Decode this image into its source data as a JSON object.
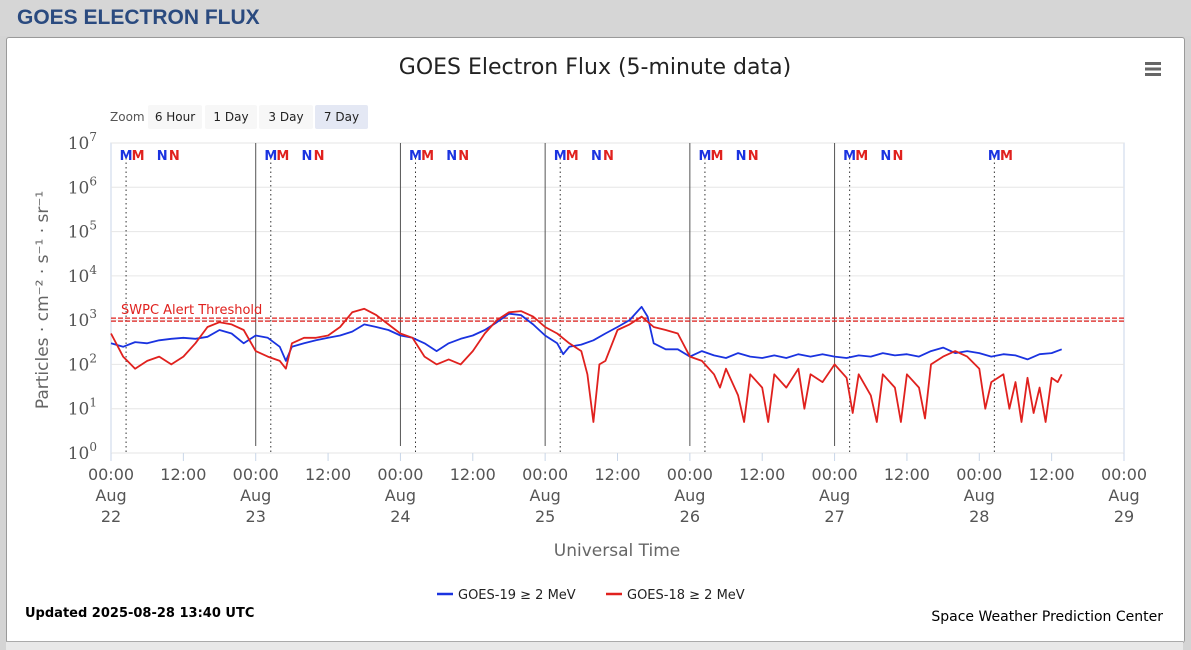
{
  "page": {
    "header_title": "GOES ELECTRON FLUX"
  },
  "menu_icon": "hamburger-menu-icon",
  "zoom": {
    "label": "Zoom",
    "buttons": [
      "6 Hour",
      "1 Day",
      "3 Day",
      "7 Day"
    ],
    "selected": "7 Day"
  },
  "footer": {
    "updated": "Updated 2025-08-28 13:40 UTC",
    "credit": "Space Weather Prediction Center"
  },
  "colors": {
    "goes19": "#1a33e0",
    "goes18": "#e0211e",
    "threshold": "#e0211e",
    "grid": "#e6e6e6",
    "plot_border": "#c9d6e8"
  },
  "chart_data": {
    "type": "line",
    "title": "GOES Electron Flux (5-minute data)",
    "xlabel": "Universal Time",
    "ylabel": "Particles · cm⁻² · s⁻¹ · sr⁻¹",
    "y_scale": "log",
    "ylim": [
      1,
      10000000
    ],
    "xlim": [
      "2025-08-22 00:00",
      "2025-08-29 00:00"
    ],
    "y_ticks": [
      {
        "value": 1,
        "base": "10",
        "exp": "0"
      },
      {
        "value": 10,
        "base": "10",
        "exp": "1"
      },
      {
        "value": 100,
        "base": "10",
        "exp": "2"
      },
      {
        "value": 1000,
        "base": "10",
        "exp": "3"
      },
      {
        "value": 10000,
        "base": "10",
        "exp": "4"
      },
      {
        "value": 100000,
        "base": "10",
        "exp": "5"
      },
      {
        "value": 1000000,
        "base": "10",
        "exp": "6"
      },
      {
        "value": 10000000,
        "base": "10",
        "exp": "7"
      }
    ],
    "x_ticks": [
      {
        "time": "2025-08-22 00:00",
        "label": [
          "00:00",
          "Aug",
          "22"
        ]
      },
      {
        "time": "2025-08-22 12:00",
        "label": [
          "12:00"
        ]
      },
      {
        "time": "2025-08-23 00:00",
        "label": [
          "00:00",
          "Aug",
          "23"
        ]
      },
      {
        "time": "2025-08-23 12:00",
        "label": [
          "12:00"
        ]
      },
      {
        "time": "2025-08-24 00:00",
        "label": [
          "00:00",
          "Aug",
          "24"
        ]
      },
      {
        "time": "2025-08-24 12:00",
        "label": [
          "12:00"
        ]
      },
      {
        "time": "2025-08-25 00:00",
        "label": [
          "00:00",
          "Aug",
          "25"
        ]
      },
      {
        "time": "2025-08-25 12:00",
        "label": [
          "12:00"
        ]
      },
      {
        "time": "2025-08-26 00:00",
        "label": [
          "00:00",
          "Aug",
          "26"
        ]
      },
      {
        "time": "2025-08-26 12:00",
        "label": [
          "12:00"
        ]
      },
      {
        "time": "2025-08-27 00:00",
        "label": [
          "00:00",
          "Aug",
          "27"
        ]
      },
      {
        "time": "2025-08-27 12:00",
        "label": [
          "12:00"
        ]
      },
      {
        "time": "2025-08-28 00:00",
        "label": [
          "00:00",
          "Aug",
          "28"
        ]
      },
      {
        "time": "2025-08-28 12:00",
        "label": [
          "12:00"
        ]
      },
      {
        "time": "2025-08-29 00:00",
        "label": [
          "00:00",
          "Aug",
          "29"
        ]
      }
    ],
    "threshold": {
      "label": "SWPC Alert Threshold",
      "value": 1000
    },
    "day_markers": [
      {
        "time": "2025-08-22 02:30",
        "label": "M",
        "color": "#1a33e0"
      },
      {
        "time": "2025-08-22 04:30",
        "label": "M",
        "color": "#e0211e"
      },
      {
        "time": "2025-08-22 08:30",
        "label": "N",
        "color": "#1a33e0"
      },
      {
        "time": "2025-08-22 10:30",
        "label": "N",
        "color": "#e0211e"
      },
      {
        "time": "2025-08-23 02:30",
        "label": "M",
        "color": "#1a33e0"
      },
      {
        "time": "2025-08-23 04:30",
        "label": "M",
        "color": "#e0211e"
      },
      {
        "time": "2025-08-23 08:30",
        "label": "N",
        "color": "#1a33e0"
      },
      {
        "time": "2025-08-23 10:30",
        "label": "N",
        "color": "#e0211e"
      },
      {
        "time": "2025-08-24 02:30",
        "label": "M",
        "color": "#1a33e0"
      },
      {
        "time": "2025-08-24 04:30",
        "label": "M",
        "color": "#e0211e"
      },
      {
        "time": "2025-08-24 08:30",
        "label": "N",
        "color": "#1a33e0"
      },
      {
        "time": "2025-08-24 10:30",
        "label": "N",
        "color": "#e0211e"
      },
      {
        "time": "2025-08-25 02:30",
        "label": "M",
        "color": "#1a33e0"
      },
      {
        "time": "2025-08-25 04:30",
        "label": "M",
        "color": "#e0211e"
      },
      {
        "time": "2025-08-25 08:30",
        "label": "N",
        "color": "#1a33e0"
      },
      {
        "time": "2025-08-25 10:30",
        "label": "N",
        "color": "#e0211e"
      },
      {
        "time": "2025-08-26 02:30",
        "label": "M",
        "color": "#1a33e0"
      },
      {
        "time": "2025-08-26 04:30",
        "label": "M",
        "color": "#e0211e"
      },
      {
        "time": "2025-08-26 08:30",
        "label": "N",
        "color": "#1a33e0"
      },
      {
        "time": "2025-08-26 10:30",
        "label": "N",
        "color": "#e0211e"
      },
      {
        "time": "2025-08-27 02:30",
        "label": "M",
        "color": "#1a33e0"
      },
      {
        "time": "2025-08-27 04:30",
        "label": "M",
        "color": "#e0211e"
      },
      {
        "time": "2025-08-27 08:30",
        "label": "N",
        "color": "#1a33e0"
      },
      {
        "time": "2025-08-27 10:30",
        "label": "N",
        "color": "#e0211e"
      },
      {
        "time": "2025-08-28 02:30",
        "label": "M",
        "color": "#1a33e0"
      },
      {
        "time": "2025-08-28 04:30",
        "label": "M",
        "color": "#e0211e"
      }
    ],
    "day_lines": [
      "2025-08-23 00:00",
      "2025-08-24 00:00",
      "2025-08-25 00:00",
      "2025-08-26 00:00",
      "2025-08-27 00:00"
    ],
    "noon_lines": [
      "2025-08-22 02:30",
      "2025-08-23 02:30",
      "2025-08-24 02:30",
      "2025-08-25 02:30",
      "2025-08-26 02:30",
      "2025-08-27 02:30",
      "2025-08-28 02:30"
    ],
    "series": [
      {
        "name": "GOES-19 ≥ 2 MeV",
        "color": "#1a33e0",
        "points": [
          [
            "2025-08-22 00:00",
            300
          ],
          [
            "2025-08-22 02:00",
            250
          ],
          [
            "2025-08-22 04:00",
            320
          ],
          [
            "2025-08-22 06:00",
            300
          ],
          [
            "2025-08-22 08:00",
            350
          ],
          [
            "2025-08-22 10:00",
            380
          ],
          [
            "2025-08-22 12:00",
            400
          ],
          [
            "2025-08-22 14:00",
            380
          ],
          [
            "2025-08-22 16:00",
            420
          ],
          [
            "2025-08-22 18:00",
            600
          ],
          [
            "2025-08-22 20:00",
            500
          ],
          [
            "2025-08-22 22:00",
            300
          ],
          [
            "2025-08-23 00:00",
            450
          ],
          [
            "2025-08-23 02:00",
            400
          ],
          [
            "2025-08-23 04:00",
            250
          ],
          [
            "2025-08-23 05:00",
            120
          ],
          [
            "2025-08-23 06:00",
            250
          ],
          [
            "2025-08-23 08:00",
            300
          ],
          [
            "2025-08-23 10:00",
            350
          ],
          [
            "2025-08-23 12:00",
            400
          ],
          [
            "2025-08-23 14:00",
            450
          ],
          [
            "2025-08-23 16:00",
            550
          ],
          [
            "2025-08-23 18:00",
            800
          ],
          [
            "2025-08-23 20:00",
            700
          ],
          [
            "2025-08-23 22:00",
            600
          ],
          [
            "2025-08-24 00:00",
            450
          ],
          [
            "2025-08-24 02:00",
            400
          ],
          [
            "2025-08-24 04:00",
            300
          ],
          [
            "2025-08-24 06:00",
            200
          ],
          [
            "2025-08-24 08:00",
            300
          ],
          [
            "2025-08-24 10:00",
            380
          ],
          [
            "2025-08-24 12:00",
            450
          ],
          [
            "2025-08-24 14:00",
            600
          ],
          [
            "2025-08-24 16:00",
            900
          ],
          [
            "2025-08-24 18:00",
            1400
          ],
          [
            "2025-08-24 20:00",
            1300
          ],
          [
            "2025-08-24 22:00",
            800
          ],
          [
            "2025-08-25 00:00",
            450
          ],
          [
            "2025-08-25 02:00",
            300
          ],
          [
            "2025-08-25 03:00",
            170
          ],
          [
            "2025-08-25 04:00",
            250
          ],
          [
            "2025-08-25 06:00",
            280
          ],
          [
            "2025-08-25 08:00",
            350
          ],
          [
            "2025-08-25 10:00",
            500
          ],
          [
            "2025-08-25 12:00",
            700
          ],
          [
            "2025-08-25 14:00",
            1000
          ],
          [
            "2025-08-25 16:00",
            2000
          ],
          [
            "2025-08-25 17:00",
            1200
          ],
          [
            "2025-08-25 18:00",
            300
          ],
          [
            "2025-08-25 20:00",
            220
          ],
          [
            "2025-08-25 22:00",
            220
          ],
          [
            "2025-08-26 00:00",
            150
          ],
          [
            "2025-08-26 02:00",
            200
          ],
          [
            "2025-08-26 04:00",
            160
          ],
          [
            "2025-08-26 06:00",
            140
          ],
          [
            "2025-08-26 08:00",
            180
          ],
          [
            "2025-08-26 10:00",
            150
          ],
          [
            "2025-08-26 12:00",
            140
          ],
          [
            "2025-08-26 14:00",
            160
          ],
          [
            "2025-08-26 16:00",
            140
          ],
          [
            "2025-08-26 18:00",
            170
          ],
          [
            "2025-08-26 20:00",
            150
          ],
          [
            "2025-08-26 22:00",
            170
          ],
          [
            "2025-08-27 00:00",
            150
          ],
          [
            "2025-08-27 02:00",
            140
          ],
          [
            "2025-08-27 04:00",
            160
          ],
          [
            "2025-08-27 06:00",
            150
          ],
          [
            "2025-08-27 08:00",
            180
          ],
          [
            "2025-08-27 10:00",
            160
          ],
          [
            "2025-08-27 12:00",
            170
          ],
          [
            "2025-08-27 14:00",
            150
          ],
          [
            "2025-08-27 16:00",
            200
          ],
          [
            "2025-08-27 18:00",
            240
          ],
          [
            "2025-08-27 20:00",
            180
          ],
          [
            "2025-08-27 22:00",
            200
          ],
          [
            "2025-08-28 00:00",
            180
          ],
          [
            "2025-08-28 02:00",
            150
          ],
          [
            "2025-08-28 04:00",
            170
          ],
          [
            "2025-08-28 06:00",
            160
          ],
          [
            "2025-08-28 08:00",
            130
          ],
          [
            "2025-08-28 10:00",
            170
          ],
          [
            "2025-08-28 12:00",
            180
          ],
          [
            "2025-08-28 13:40",
            220
          ]
        ]
      },
      {
        "name": "GOES-18 ≥ 2 MeV",
        "color": "#e0211e",
        "points": [
          [
            "2025-08-22 00:00",
            500
          ],
          [
            "2025-08-22 02:00",
            150
          ],
          [
            "2025-08-22 04:00",
            80
          ],
          [
            "2025-08-22 06:00",
            120
          ],
          [
            "2025-08-22 08:00",
            150
          ],
          [
            "2025-08-22 10:00",
            100
          ],
          [
            "2025-08-22 12:00",
            150
          ],
          [
            "2025-08-22 14:00",
            300
          ],
          [
            "2025-08-22 16:00",
            700
          ],
          [
            "2025-08-22 18:00",
            900
          ],
          [
            "2025-08-22 20:00",
            800
          ],
          [
            "2025-08-22 22:00",
            600
          ],
          [
            "2025-08-23 00:00",
            200
          ],
          [
            "2025-08-23 02:00",
            150
          ],
          [
            "2025-08-23 04:00",
            120
          ],
          [
            "2025-08-23 05:00",
            80
          ],
          [
            "2025-08-23 06:00",
            300
          ],
          [
            "2025-08-23 08:00",
            400
          ],
          [
            "2025-08-23 10:00",
            400
          ],
          [
            "2025-08-23 12:00",
            450
          ],
          [
            "2025-08-23 14:00",
            700
          ],
          [
            "2025-08-23 16:00",
            1500
          ],
          [
            "2025-08-23 18:00",
            1800
          ],
          [
            "2025-08-23 20:00",
            1300
          ],
          [
            "2025-08-23 22:00",
            800
          ],
          [
            "2025-08-24 00:00",
            500
          ],
          [
            "2025-08-24 02:00",
            400
          ],
          [
            "2025-08-24 04:00",
            150
          ],
          [
            "2025-08-24 06:00",
            100
          ],
          [
            "2025-08-24 08:00",
            130
          ],
          [
            "2025-08-24 10:00",
            100
          ],
          [
            "2025-08-24 12:00",
            200
          ],
          [
            "2025-08-24 14:00",
            500
          ],
          [
            "2025-08-24 16:00",
            1000
          ],
          [
            "2025-08-24 18:00",
            1500
          ],
          [
            "2025-08-24 20:00",
            1600
          ],
          [
            "2025-08-24 22:00",
            1200
          ],
          [
            "2025-08-25 00:00",
            700
          ],
          [
            "2025-08-25 02:00",
            500
          ],
          [
            "2025-08-25 04:00",
            300
          ],
          [
            "2025-08-25 06:00",
            200
          ],
          [
            "2025-08-25 07:00",
            60
          ],
          [
            "2025-08-25 08:00",
            5
          ],
          [
            "2025-08-25 09:00",
            100
          ],
          [
            "2025-08-25 10:00",
            120
          ],
          [
            "2025-08-25 12:00",
            600
          ],
          [
            "2025-08-25 14:00",
            800
          ],
          [
            "2025-08-25 16:00",
            1200
          ],
          [
            "2025-08-25 18:00",
            700
          ],
          [
            "2025-08-25 20:00",
            600
          ],
          [
            "2025-08-25 22:00",
            500
          ],
          [
            "2025-08-26 00:00",
            150
          ],
          [
            "2025-08-26 02:00",
            120
          ],
          [
            "2025-08-26 04:00",
            60
          ],
          [
            "2025-08-26 05:00",
            30
          ],
          [
            "2025-08-26 06:00",
            80
          ],
          [
            "2025-08-26 08:00",
            20
          ],
          [
            "2025-08-26 09:00",
            5
          ],
          [
            "2025-08-26 10:00",
            60
          ],
          [
            "2025-08-26 12:00",
            30
          ],
          [
            "2025-08-26 13:00",
            5
          ],
          [
            "2025-08-26 14:00",
            60
          ],
          [
            "2025-08-26 16:00",
            30
          ],
          [
            "2025-08-26 18:00",
            80
          ],
          [
            "2025-08-26 19:00",
            10
          ],
          [
            "2025-08-26 20:00",
            60
          ],
          [
            "2025-08-26 22:00",
            40
          ],
          [
            "2025-08-27 00:00",
            100
          ],
          [
            "2025-08-27 02:00",
            50
          ],
          [
            "2025-08-27 03:00",
            8
          ],
          [
            "2025-08-27 04:00",
            60
          ],
          [
            "2025-08-27 06:00",
            20
          ],
          [
            "2025-08-27 07:00",
            5
          ],
          [
            "2025-08-27 08:00",
            60
          ],
          [
            "2025-08-27 10:00",
            30
          ],
          [
            "2025-08-27 11:00",
            5
          ],
          [
            "2025-08-27 12:00",
            60
          ],
          [
            "2025-08-27 14:00",
            30
          ],
          [
            "2025-08-27 15:00",
            6
          ],
          [
            "2025-08-27 16:00",
            100
          ],
          [
            "2025-08-27 18:00",
            150
          ],
          [
            "2025-08-27 20:00",
            200
          ],
          [
            "2025-08-27 22:00",
            150
          ],
          [
            "2025-08-28 00:00",
            80
          ],
          [
            "2025-08-28 01:00",
            10
          ],
          [
            "2025-08-28 02:00",
            40
          ],
          [
            "2025-08-28 04:00",
            60
          ],
          [
            "2025-08-28 05:00",
            10
          ],
          [
            "2025-08-28 06:00",
            40
          ],
          [
            "2025-08-28 07:00",
            5
          ],
          [
            "2025-08-28 08:00",
            50
          ],
          [
            "2025-08-28 09:00",
            8
          ],
          [
            "2025-08-28 10:00",
            30
          ],
          [
            "2025-08-28 11:00",
            5
          ],
          [
            "2025-08-28 12:00",
            50
          ],
          [
            "2025-08-28 13:00",
            40
          ],
          [
            "2025-08-28 13:40",
            60
          ]
        ]
      }
    ]
  }
}
